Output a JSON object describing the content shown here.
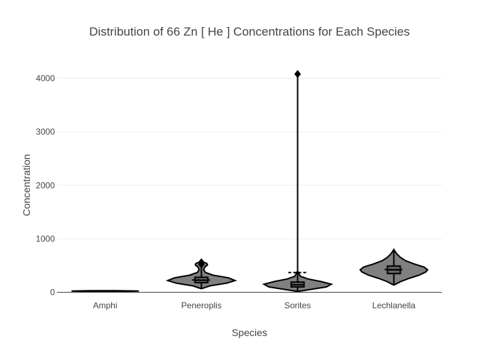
{
  "chart_data": {
    "type": "violin",
    "title": "Distribution of 66  Zn  [ He ]  Concentrations for Each Species",
    "xlabel": "Species",
    "ylabel": "Concentration",
    "ylim": [
      -100,
      4400
    ],
    "yticks": [
      0,
      1000,
      2000,
      3000,
      4000
    ],
    "yticklabels": [
      "0",
      "1000",
      "2000",
      "3000",
      "4000"
    ],
    "grid": true,
    "legend": false,
    "colors": {
      "fill": "#808080",
      "line": "#000000",
      "box": "#666666"
    },
    "categories": [
      "Amphi",
      "Peneroplis",
      "Sorites",
      "Lechlanella"
    ],
    "series": [
      {
        "category": "Amphi",
        "min": 15,
        "q1": 20,
        "median": 22,
        "q3": 25,
        "max": 30,
        "mean": 22,
        "outliers": [],
        "kde": [
          [
            15,
            0.3
          ],
          [
            22,
            1.0
          ],
          [
            30,
            0.3
          ]
        ]
      },
      {
        "category": "Peneroplis",
        "min": 80,
        "q1": 180,
        "median": 225,
        "q3": 280,
        "max": 540,
        "mean": 230,
        "outliers": [
          520,
          560
        ],
        "kde": [
          [
            70,
            0.02
          ],
          [
            120,
            0.25
          ],
          [
            170,
            0.75
          ],
          [
            220,
            1.0
          ],
          [
            270,
            0.8
          ],
          [
            320,
            0.35
          ],
          [
            370,
            0.12
          ],
          [
            420,
            0.07
          ],
          [
            470,
            0.1
          ],
          [
            510,
            0.18
          ],
          [
            540,
            0.16
          ],
          [
            570,
            0.03
          ]
        ]
      },
      {
        "category": "Sorites",
        "min": 30,
        "q1": 100,
        "median": 140,
        "q3": 190,
        "max": 4080,
        "mean": 370,
        "outliers": [
          4080
        ],
        "kde": [
          [
            20,
            0.05
          ],
          [
            60,
            0.45
          ],
          [
            100,
            0.85
          ],
          [
            150,
            1.0
          ],
          [
            200,
            0.7
          ],
          [
            250,
            0.3
          ],
          [
            300,
            0.08
          ],
          [
            400,
            0.0
          ],
          [
            4080,
            0.0
          ]
        ]
      },
      {
        "category": "Lechlanella",
        "min": 150,
        "q1": 350,
        "median": 420,
        "q3": 490,
        "max": 790,
        "mean": 425,
        "outliers": [],
        "kde": [
          [
            140,
            0.02
          ],
          [
            200,
            0.2
          ],
          [
            260,
            0.45
          ],
          [
            320,
            0.75
          ],
          [
            380,
            0.95
          ],
          [
            420,
            1.0
          ],
          [
            470,
            0.9
          ],
          [
            530,
            0.6
          ],
          [
            590,
            0.35
          ],
          [
            650,
            0.2
          ],
          [
            710,
            0.1
          ],
          [
            770,
            0.03
          ],
          [
            800,
            0.0
          ]
        ]
      }
    ]
  }
}
